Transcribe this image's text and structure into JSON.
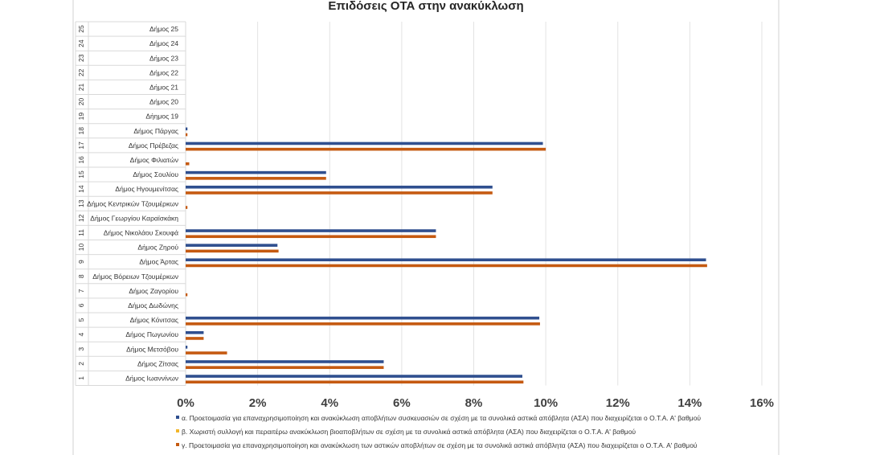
{
  "chart_data": {
    "type": "bar",
    "orientation": "horizontal",
    "title": "Επιδόσεις ΟΤΑ στην ανακύκλωση",
    "xlabel": "",
    "ylabel": "",
    "xlim": [
      0,
      16
    ],
    "x_ticks": [
      "0%",
      "2%",
      "4%",
      "6%",
      "8%",
      "10%",
      "12%",
      "14%",
      "16%"
    ],
    "grid": true,
    "legend_position": "bottom",
    "categories": [
      {
        "num": "1",
        "name": "Δήμος Ιωαννίνων"
      },
      {
        "num": "2",
        "name": "Δήμος Ζίτσας"
      },
      {
        "num": "3",
        "name": "Δήμος Μετσόβου"
      },
      {
        "num": "4",
        "name": "Δήμος Πωγωνίου"
      },
      {
        "num": "5",
        "name": "Δήμος Κόνιτσας"
      },
      {
        "num": "6",
        "name": "Δήμος Δωδώνης"
      },
      {
        "num": "7",
        "name": "Δήμος Ζαγορίου"
      },
      {
        "num": "8",
        "name": "Δήμος Βόρειων Τζουμέρκων"
      },
      {
        "num": "9",
        "name": "Δήμος Άρτας"
      },
      {
        "num": "10",
        "name": "Δήμος Ζηρού"
      },
      {
        "num": "11",
        "name": "Δήμος Νικολάου Σκουφά"
      },
      {
        "num": "12",
        "name": "Δήμος Γεωργίου Καραϊσκάκη"
      },
      {
        "num": "13",
        "name": "Δήμος Κεντρικών Τζουμέρκων"
      },
      {
        "num": "14",
        "name": "Δήμος Ηγουμενίτσας"
      },
      {
        "num": "15",
        "name": "Δήμος Σουλίου"
      },
      {
        "num": "16",
        "name": "Δήμος Φιλιατών"
      },
      {
        "num": "17",
        "name": "Δήμος Πρέβεζας"
      },
      {
        "num": "18",
        "name": "Δήμος Πάργας"
      },
      {
        "num": "19",
        "name": "Δήημος 19"
      },
      {
        "num": "20",
        "name": "Δήμος 20"
      },
      {
        "num": "21",
        "name": "Δήμος 21"
      },
      {
        "num": "22",
        "name": "Δήμος 22"
      },
      {
        "num": "23",
        "name": "Δήμος 23"
      },
      {
        "num": "24",
        "name": "Δήμος 24"
      },
      {
        "num": "25",
        "name": "Δήμος 25"
      }
    ],
    "series": [
      {
        "name": "α. Προετοιμασία για επαναχρησιμοποίηση και ανακύκλωση αποβλήτων συσκευασιών σε σχέση με τα συνολικά αστικά απόβλητα (ΑΣΑ) που διαχειρίζεται ο Ο.Τ.Α. Α' βαθμού",
        "color": "#2f4f8f",
        "values": [
          9.35,
          5.5,
          0.05,
          0.5,
          9.82,
          0,
          0,
          0,
          14.45,
          2.55,
          6.95,
          0,
          0,
          8.52,
          3.9,
          0,
          9.92,
          0.05,
          0,
          0,
          0,
          0,
          0,
          0,
          0
        ]
      },
      {
        "name": "β. Χωριστή συλλογή και περαιτέρω ανακύκλωση βιοαποβλήτων σε σχέση με τα συνολικά αστικά απόβλητα (ΑΣΑ) που διαχειρίζεται ο Ο.Τ.Α. Α' βαθμού",
        "color": "#f2b62a",
        "values": [
          0,
          0,
          0,
          0,
          0,
          0,
          0,
          0,
          0,
          0,
          0,
          0,
          0,
          0,
          0,
          0,
          0,
          0,
          0,
          0,
          0,
          0,
          0,
          0,
          0
        ]
      },
      {
        "name": "γ. Προετοιμασία για επαναχρησιμοποίηση και ανακύκλωση των αστικών αποβλήτων σε σχέση με τα συνολικά αστικά απόβλητα (ΑΣΑ) που διαχειρίζεται ο Ο.Τ.Α. Α' βαθμού",
        "color": "#c55a11",
        "values": [
          9.38,
          5.5,
          1.15,
          0.5,
          9.84,
          0,
          0.05,
          0,
          14.48,
          2.58,
          6.95,
          0,
          0.05,
          8.52,
          3.9,
          0.1,
          10.0,
          0.05,
          0,
          0,
          0,
          0,
          0,
          0,
          0
        ]
      }
    ]
  }
}
